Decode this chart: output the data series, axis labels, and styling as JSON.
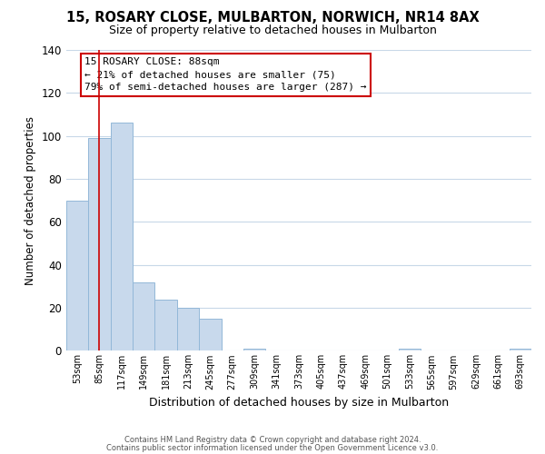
{
  "title": "15, ROSARY CLOSE, MULBARTON, NORWICH, NR14 8AX",
  "subtitle": "Size of property relative to detached houses in Mulbarton",
  "xlabel": "Distribution of detached houses by size in Mulbarton",
  "ylabel": "Number of detached properties",
  "bar_labels": [
    "53sqm",
    "85sqm",
    "117sqm",
    "149sqm",
    "181sqm",
    "213sqm",
    "245sqm",
    "277sqm",
    "309sqm",
    "341sqm",
    "373sqm",
    "405sqm",
    "437sqm",
    "469sqm",
    "501sqm",
    "533sqm",
    "565sqm",
    "597sqm",
    "629sqm",
    "661sqm",
    "693sqm"
  ],
  "bar_values": [
    70,
    99,
    106,
    32,
    24,
    20,
    15,
    0,
    1,
    0,
    0,
    0,
    0,
    0,
    0,
    1,
    0,
    0,
    0,
    0,
    1
  ],
  "bar_color": "#c8d9ec",
  "bar_edge_color": "#93b8d8",
  "redline_x": 1,
  "ylim": [
    0,
    140
  ],
  "yticks": [
    0,
    20,
    40,
    60,
    80,
    100,
    120,
    140
  ],
  "annotation_title": "15 ROSARY CLOSE: 88sqm",
  "annotation_line1": "← 21% of detached houses are smaller (75)",
  "annotation_line2": "79% of semi-detached houses are larger (287) →",
  "annotation_box_color": "#ffffff",
  "annotation_box_edge": "#cc0000",
  "footer1": "Contains HM Land Registry data © Crown copyright and database right 2024.",
  "footer2": "Contains public sector information licensed under the Open Government Licence v3.0.",
  "bg_color": "#ffffff",
  "grid_color": "#c8d8e8"
}
